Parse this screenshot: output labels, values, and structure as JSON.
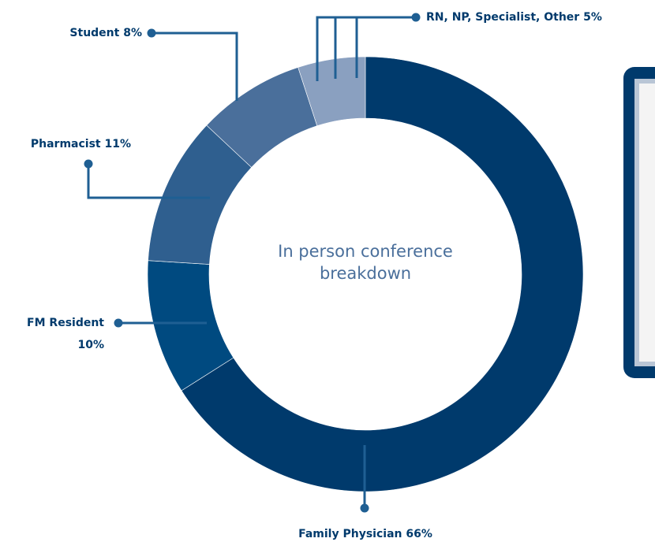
{
  "chart_data": {
    "type": "pie",
    "donut": true,
    "center_text": "In person conference breakdown",
    "categories": [
      "Family Physician",
      "FM Resident",
      "Pharmacist",
      "Student",
      "RN, NP, Specialist, Other"
    ],
    "values": [
      66,
      10,
      11,
      8,
      5
    ],
    "value_labels": [
      "66%",
      "10%",
      "11%",
      "8%",
      "5%"
    ],
    "colors": [
      "#003a6c",
      "#004a80",
      "#2f5f8f",
      "#4a6f9b",
      "#8aa0c0"
    ]
  }
}
